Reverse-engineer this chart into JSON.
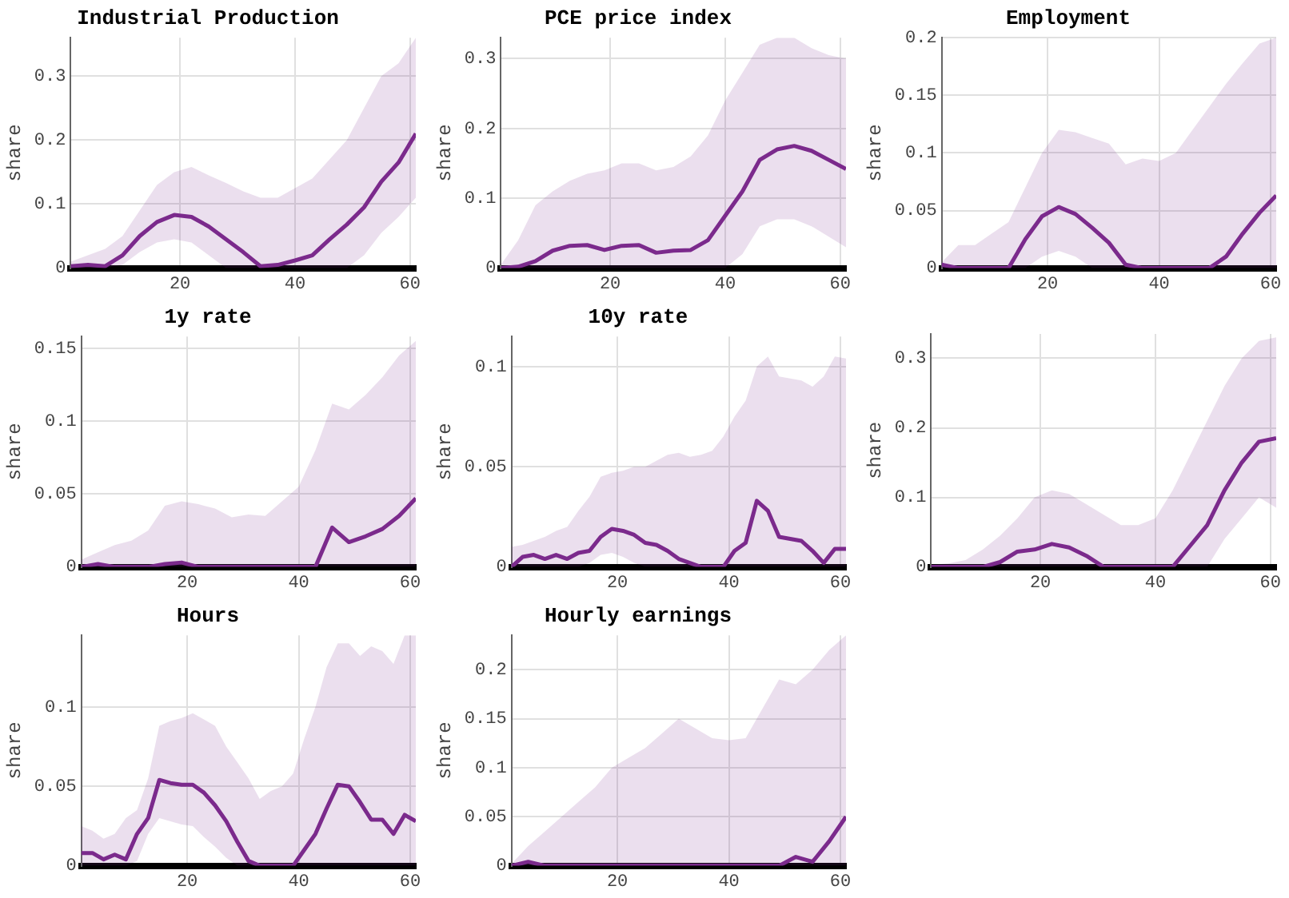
{
  "chart_data": [
    {
      "type": "line",
      "title": "Industrial Production",
      "ylabel": "share",
      "xlim": [
        1,
        61
      ],
      "xticks": [
        20,
        40,
        60
      ],
      "ylim": [
        0,
        0.36
      ],
      "yticks": [
        0,
        0.1,
        0.2,
        0.3
      ],
      "grid": true,
      "series": [
        {
          "color": "#7b2a8c",
          "x": [
            1,
            4,
            7,
            10,
            13,
            16,
            19,
            22,
            25,
            28,
            31,
            34,
            37,
            40,
            43,
            46,
            49,
            52,
            55,
            58,
            61
          ],
          "values": [
            0.003,
            0.005,
            0.003,
            0.02,
            0.05,
            0.072,
            0.083,
            0.08,
            0.065,
            0.045,
            0.025,
            0.003,
            0.005,
            0.012,
            0.02,
            0.045,
            0.068,
            0.095,
            0.135,
            0.165,
            0.21
          ],
          "lower": [
            0,
            0,
            0,
            0.005,
            0.025,
            0.04,
            0.045,
            0.04,
            0.02,
            0,
            0,
            0,
            0,
            0,
            0,
            0,
            0,
            0.02,
            0.055,
            0.08,
            0.11
          ],
          "upper": [
            0.01,
            0.02,
            0.03,
            0.05,
            0.09,
            0.13,
            0.15,
            0.158,
            0.145,
            0.133,
            0.12,
            0.11,
            0.11,
            0.125,
            0.14,
            0.17,
            0.2,
            0.25,
            0.3,
            0.32,
            0.36
          ]
        }
      ]
    },
    {
      "type": "line",
      "title": "PCE price index",
      "ylabel": "share",
      "xlim": [
        1,
        61
      ],
      "xticks": [
        20,
        40,
        60
      ],
      "ylim": [
        0,
        0.33
      ],
      "yticks": [
        0,
        0.1,
        0.2,
        0.3
      ],
      "grid": true,
      "series": [
        {
          "color": "#7b2a8c",
          "x": [
            1,
            4,
            7,
            10,
            13,
            16,
            19,
            22,
            25,
            28,
            31,
            34,
            37,
            40,
            43,
            46,
            49,
            52,
            55,
            58,
            61
          ],
          "values": [
            0,
            0.002,
            0.01,
            0.025,
            0.032,
            0.033,
            0.026,
            0.032,
            0.033,
            0.022,
            0.025,
            0.026,
            0.04,
            0.075,
            0.11,
            0.155,
            0.17,
            0.175,
            0.168,
            0.155,
            0.142
          ],
          "lower": [
            0,
            0,
            0,
            0,
            0,
            0,
            0,
            0,
            0,
            0,
            0,
            0,
            0,
            0,
            0.02,
            0.06,
            0.07,
            0.07,
            0.06,
            0.045,
            0.03
          ],
          "upper": [
            0.005,
            0.04,
            0.09,
            0.11,
            0.125,
            0.135,
            0.14,
            0.15,
            0.15,
            0.14,
            0.145,
            0.16,
            0.19,
            0.24,
            0.28,
            0.32,
            0.33,
            0.33,
            0.315,
            0.305,
            0.3
          ]
        }
      ]
    },
    {
      "type": "line",
      "title": "Employment",
      "ylabel": "share",
      "xlim": [
        1,
        61
      ],
      "xticks": [
        20,
        40,
        60
      ],
      "ylim": [
        0,
        0.2
      ],
      "yticks": [
        0,
        0.05,
        0.1,
        0.15,
        0.2
      ],
      "grid": true,
      "series": [
        {
          "color": "#7b2a8c",
          "x": [
            1,
            4,
            7,
            10,
            13,
            16,
            19,
            22,
            25,
            28,
            31,
            34,
            37,
            40,
            43,
            46,
            49,
            52,
            55,
            58,
            61
          ],
          "values": [
            0.003,
            0,
            0,
            0,
            0,
            0.025,
            0.045,
            0.053,
            0.047,
            0.035,
            0.022,
            0.003,
            0,
            0,
            0,
            0,
            0,
            0.01,
            0.03,
            0.048,
            0.063
          ],
          "lower": [
            0,
            0,
            0,
            0,
            0,
            0,
            0.01,
            0.015,
            0.01,
            0,
            0,
            0,
            0,
            0,
            0,
            0,
            0,
            0,
            0,
            0,
            0
          ],
          "upper": [
            0.005,
            0.02,
            0.02,
            0.03,
            0.04,
            0.07,
            0.1,
            0.12,
            0.118,
            0.113,
            0.108,
            0.09,
            0.095,
            0.093,
            0.1,
            0.12,
            0.14,
            0.16,
            0.178,
            0.195,
            0.2
          ]
        }
      ]
    },
    {
      "type": "line",
      "title": "1y rate",
      "ylabel": "share",
      "xlim": [
        1,
        61
      ],
      "xticks": [
        20,
        40,
        60
      ],
      "ylim": [
        0,
        0.158
      ],
      "yticks": [
        0,
        0.05,
        0.1,
        0.15
      ],
      "grid": true,
      "series": [
        {
          "color": "#7b2a8c",
          "x": [
            1,
            4,
            7,
            10,
            13,
            16,
            19,
            22,
            25,
            28,
            31,
            34,
            37,
            40,
            43,
            46,
            49,
            52,
            55,
            58,
            61
          ],
          "values": [
            0,
            0.002,
            0,
            0,
            0,
            0.002,
            0.003,
            0,
            0,
            0,
            0,
            0,
            0,
            0,
            0,
            0.027,
            0.017,
            0.021,
            0.026,
            0.035,
            0.047
          ],
          "lower": [
            0,
            0,
            0,
            0,
            0,
            0,
            0,
            0,
            0,
            0,
            0,
            0,
            0,
            0,
            0,
            0,
            0,
            0,
            0,
            0,
            0
          ],
          "upper": [
            0.005,
            0.01,
            0.015,
            0.018,
            0.025,
            0.042,
            0.045,
            0.043,
            0.04,
            0.034,
            0.036,
            0.035,
            0.045,
            0.055,
            0.08,
            0.112,
            0.108,
            0.118,
            0.13,
            0.145,
            0.155
          ]
        }
      ]
    },
    {
      "type": "line",
      "title": "10y rate",
      "ylabel": "share",
      "xlim": [
        1,
        61
      ],
      "xticks": [
        20,
        40,
        60
      ],
      "ylim": [
        0,
        0.115
      ],
      "yticks": [
        0,
        0.05,
        0.1
      ],
      "grid": true,
      "series": [
        {
          "color": "#7b2a8c",
          "x": [
            1,
            3,
            5,
            7,
            9,
            11,
            13,
            15,
            17,
            19,
            21,
            23,
            25,
            27,
            29,
            31,
            33,
            35,
            37,
            39,
            41,
            43,
            45,
            47,
            49,
            51,
            53,
            55,
            57,
            59,
            61
          ],
          "values": [
            0,
            0.005,
            0.006,
            0.004,
            0.006,
            0.004,
            0.007,
            0.008,
            0.015,
            0.019,
            0.018,
            0.016,
            0.012,
            0.011,
            0.008,
            0.004,
            0.002,
            0,
            0,
            0,
            0.008,
            0.012,
            0.033,
            0.028,
            0.015,
            0.014,
            0.013,
            0.008,
            0.002,
            0.009,
            0.009
          ],
          "lower": [
            0,
            0,
            0,
            0,
            0,
            0,
            0,
            0.002,
            0.006,
            0.007,
            0.005,
            0.002,
            0,
            0,
            0,
            0,
            0,
            0,
            0,
            0,
            0,
            0,
            0,
            0,
            0,
            0,
            0,
            0,
            0,
            0,
            0
          ],
          "upper": [
            0.01,
            0.011,
            0.013,
            0.015,
            0.018,
            0.02,
            0.028,
            0.035,
            0.045,
            0.047,
            0.048,
            0.05,
            0.05,
            0.053,
            0.056,
            0.057,
            0.055,
            0.056,
            0.058,
            0.065,
            0.075,
            0.083,
            0.1,
            0.105,
            0.095,
            0.094,
            0.093,
            0.09,
            0.095,
            0.105,
            0.104
          ]
        }
      ]
    },
    {
      "type": "line",
      "ylabel": "share",
      "xlim": [
        1,
        61
      ],
      "xticks": [
        20,
        40,
        60
      ],
      "ylim": [
        0,
        0.335
      ],
      "yticks": [
        0,
        0.1,
        0.2,
        0.3
      ],
      "grid": true,
      "series": [
        {
          "color": "#7b2a8c",
          "x": [
            1,
            4,
            7,
            10,
            13,
            16,
            19,
            22,
            25,
            28,
            31,
            34,
            37,
            40,
            43,
            46,
            49,
            52,
            55,
            58,
            61
          ],
          "values": [
            0,
            0,
            0,
            0,
            0.007,
            0.022,
            0.025,
            0.033,
            0.028,
            0.016,
            0,
            0,
            0,
            0,
            0,
            0.03,
            0.06,
            0.11,
            0.15,
            0.18,
            0.185
          ],
          "lower": [
            0,
            0,
            0,
            0,
            0,
            0,
            0,
            0,
            0,
            0,
            0,
            0,
            0,
            0,
            0,
            0,
            0,
            0.04,
            0.07,
            0.1,
            0.085
          ],
          "upper": [
            0.003,
            0.005,
            0.01,
            0.025,
            0.045,
            0.07,
            0.1,
            0.11,
            0.105,
            0.09,
            0.075,
            0.06,
            0.06,
            0.07,
            0.11,
            0.16,
            0.21,
            0.26,
            0.3,
            0.325,
            0.33
          ]
        }
      ]
    },
    {
      "type": "line",
      "title": "Hours",
      "ylabel": "share",
      "xlim": [
        1,
        61
      ],
      "xticks": [
        20,
        40,
        60
      ],
      "ylim": [
        0,
        0.145
      ],
      "yticks": [
        0,
        0.05,
        0.1
      ],
      "grid": true,
      "series": [
        {
          "color": "#7b2a8c",
          "x": [
            1,
            3,
            5,
            7,
            9,
            11,
            13,
            15,
            17,
            19,
            21,
            23,
            25,
            27,
            29,
            31,
            33,
            35,
            37,
            39,
            41,
            43,
            45,
            47,
            49,
            51,
            53,
            55,
            57,
            59,
            61
          ],
          "values": [
            0.008,
            0.008,
            0.004,
            0.007,
            0.004,
            0.02,
            0.03,
            0.054,
            0.052,
            0.051,
            0.051,
            0.046,
            0.038,
            0.028,
            0.015,
            0.003,
            0,
            0,
            0,
            0,
            0.01,
            0.02,
            0.036,
            0.051,
            0.05,
            0.04,
            0.029,
            0.029,
            0.02,
            0.032,
            0.028
          ],
          "lower": [
            0,
            0,
            0,
            0,
            0,
            0.003,
            0.02,
            0.03,
            0.028,
            0.026,
            0.025,
            0.018,
            0.012,
            0.005,
            0,
            0,
            0,
            0,
            0,
            0,
            0,
            0,
            0,
            0,
            0,
            0,
            0,
            0,
            0,
            0,
            0
          ],
          "upper": [
            0.025,
            0.022,
            0.017,
            0.02,
            0.03,
            0.035,
            0.055,
            0.088,
            0.091,
            0.093,
            0.096,
            0.092,
            0.088,
            0.075,
            0.065,
            0.055,
            0.042,
            0.047,
            0.05,
            0.058,
            0.08,
            0.1,
            0.125,
            0.14,
            0.14,
            0.132,
            0.138,
            0.135,
            0.127,
            0.145,
            0.145
          ]
        }
      ]
    },
    {
      "type": "line",
      "title": "Hourly earnings",
      "ylabel": "share",
      "xlim": [
        1,
        61
      ],
      "xticks": [
        20,
        40,
        60
      ],
      "ylim": [
        0,
        0.235
      ],
      "yticks": [
        0,
        0.05,
        0.1,
        0.15,
        0.2
      ],
      "grid": true,
      "series": [
        {
          "color": "#7b2a8c",
          "x": [
            1,
            4,
            7,
            10,
            13,
            16,
            19,
            22,
            25,
            28,
            31,
            34,
            37,
            40,
            43,
            46,
            49,
            52,
            55,
            58,
            61
          ],
          "values": [
            0,
            0.004,
            0,
            0,
            0,
            0,
            0,
            0,
            0,
            0,
            0,
            0,
            0,
            0,
            0,
            0,
            0,
            0.009,
            0.004,
            0.025,
            0.05
          ],
          "lower": [
            0,
            0,
            0,
            0,
            0,
            0,
            0,
            0,
            0,
            0,
            0,
            0,
            0,
            0,
            0,
            0,
            0,
            0,
            0,
            0,
            0
          ],
          "upper": [
            0.002,
            0.02,
            0.035,
            0.05,
            0.065,
            0.08,
            0.1,
            0.11,
            0.12,
            0.135,
            0.15,
            0.14,
            0.13,
            0.128,
            0.13,
            0.16,
            0.19,
            0.185,
            0.2,
            0.22,
            0.235
          ]
        }
      ]
    }
  ]
}
